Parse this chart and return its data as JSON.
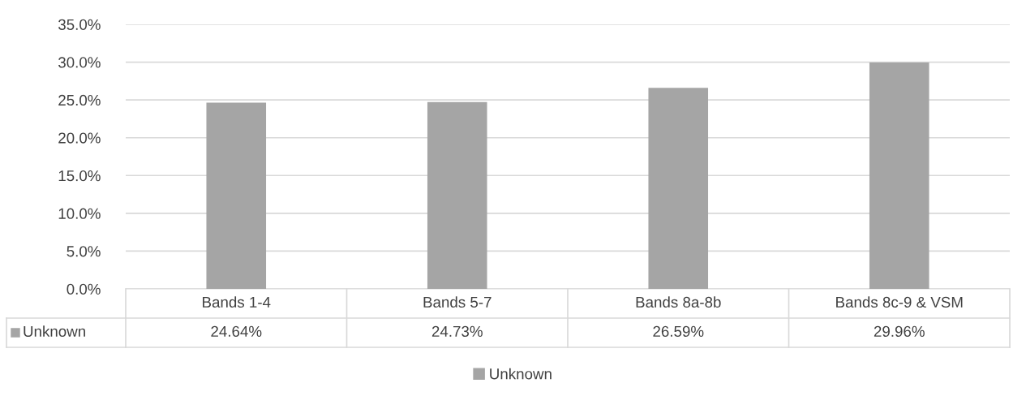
{
  "chart_data": {
    "type": "bar",
    "categories": [
      "Bands 1-4",
      "Bands 5-7",
      "Bands 8a-8b",
      "Bands 8c-9 & VSM"
    ],
    "series": [
      {
        "name": "Unknown",
        "color": "#a5a5a5",
        "values": [
          24.64,
          24.73,
          26.59,
          29.96
        ],
        "value_labels": [
          "24.64%",
          "24.73%",
          "26.59%",
          "29.96%"
        ]
      }
    ],
    "ylim": [
      0,
      35
    ],
    "yticks": [
      {
        "value": 0,
        "label": "0.0%"
      },
      {
        "value": 5,
        "label": "5.0%"
      },
      {
        "value": 10,
        "label": "10.0%"
      },
      {
        "value": 15,
        "label": "15.0%"
      },
      {
        "value": 20,
        "label": "20.0%"
      },
      {
        "value": 25,
        "label": "25.0%"
      },
      {
        "value": 30,
        "label": "30.0%"
      },
      {
        "value": 35,
        "label": "35.0%"
      }
    ],
    "grid": "y",
    "legend": "bottom"
  }
}
